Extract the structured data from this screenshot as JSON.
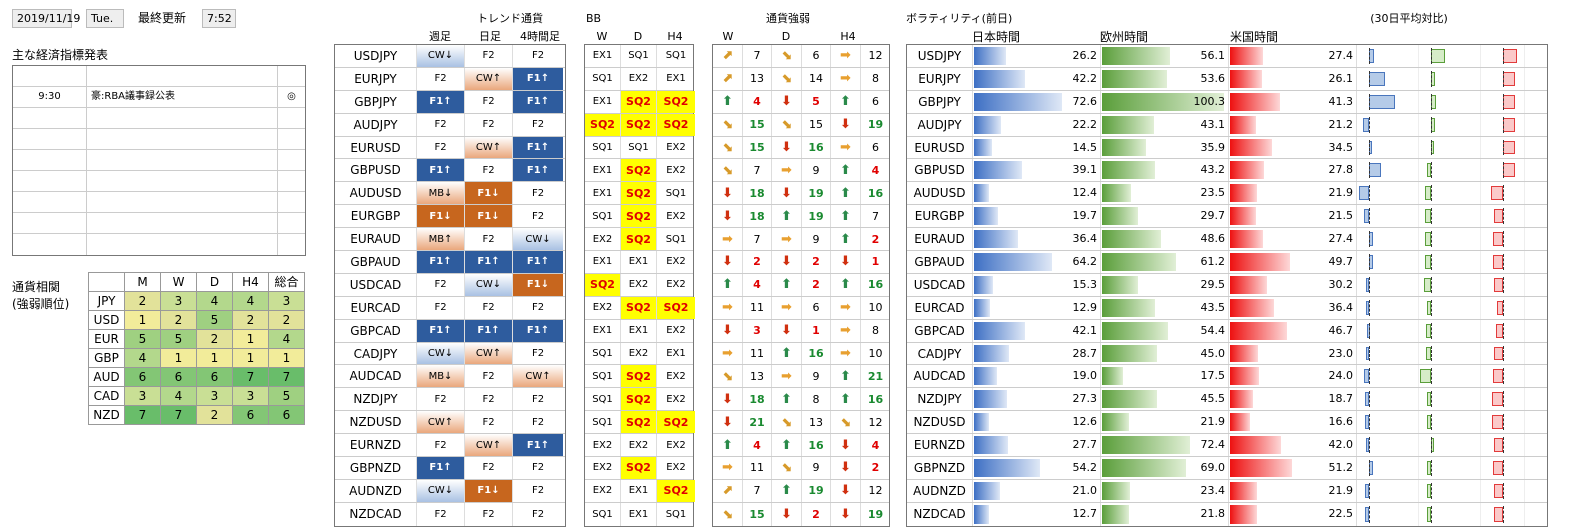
{
  "header": {
    "date": "2019/11/19",
    "dow": "Tue.",
    "updated_label": "最終更新",
    "time": "7:52"
  },
  "econ": {
    "title": "主な経済指標発表",
    "rows": [
      {
        "time": "",
        "event": "",
        "mark": ""
      },
      {
        "time": "9:30",
        "event": "豪:RBA議事録公表",
        "mark": "◎"
      },
      {
        "time": "",
        "event": "",
        "mark": ""
      },
      {
        "time": "",
        "event": "",
        "mark": ""
      },
      {
        "time": "",
        "event": "",
        "mark": ""
      },
      {
        "time": "",
        "event": "",
        "mark": ""
      },
      {
        "time": "",
        "event": "",
        "mark": ""
      },
      {
        "time": "",
        "event": "",
        "mark": ""
      },
      {
        "time": "",
        "event": "",
        "mark": ""
      }
    ]
  },
  "corr": {
    "title1": "通貨相関",
    "title2": "(強弱順位)",
    "headers": [
      "M",
      "W",
      "D",
      "H4",
      "総合"
    ],
    "rows": [
      {
        "name": "JPY",
        "v": [
          "2",
          "3",
          "4",
          "4",
          "3"
        ]
      },
      {
        "name": "USD",
        "v": [
          "1",
          "2",
          "5",
          "2",
          "2"
        ]
      },
      {
        "name": "EUR",
        "v": [
          "5",
          "5",
          "2",
          "1",
          "4"
        ]
      },
      {
        "name": "GBP",
        "v": [
          "4",
          "1",
          "1",
          "1",
          "1"
        ]
      },
      {
        "name": "AUD",
        "v": [
          "6",
          "6",
          "6",
          "7",
          "7"
        ]
      },
      {
        "name": "CAD",
        "v": [
          "3",
          "4",
          "3",
          "3",
          "5"
        ]
      },
      {
        "name": "NZD",
        "v": [
          "7",
          "7",
          "2",
          "6",
          "6"
        ]
      }
    ]
  },
  "trend": {
    "title": "トレンド通貨",
    "headers": [
      "週足",
      "日足",
      "4時間足"
    ],
    "rows": [
      {
        "pair": "USDJPY",
        "c": [
          [
            "CW↓",
            "lb"
          ],
          [
            "F2",
            ""
          ],
          [
            "F2",
            ""
          ]
        ]
      },
      {
        "pair": "EURJPY",
        "c": [
          [
            "F2",
            ""
          ],
          [
            "CW↑",
            "lo"
          ],
          [
            "F1↑",
            "bl"
          ]
        ]
      },
      {
        "pair": "GBPJPY",
        "c": [
          [
            "F1↑",
            "bl"
          ],
          [
            "F2",
            ""
          ],
          [
            "F1↑",
            "bl"
          ]
        ]
      },
      {
        "pair": "AUDJPY",
        "c": [
          [
            "F2",
            ""
          ],
          [
            "F2",
            ""
          ],
          [
            "F2",
            ""
          ]
        ]
      },
      {
        "pair": "EURUSD",
        "c": [
          [
            "F2",
            ""
          ],
          [
            "CW↑",
            "lo"
          ],
          [
            "F1↑",
            "bl"
          ]
        ]
      },
      {
        "pair": "GBPUSD",
        "c": [
          [
            "F1↑",
            "bl"
          ],
          [
            "F2",
            ""
          ],
          [
            "F1↑",
            "bl"
          ]
        ]
      },
      {
        "pair": "AUDUSD",
        "c": [
          [
            "MB↓",
            "lo"
          ],
          [
            "F1↓",
            "or"
          ],
          [
            "F2",
            ""
          ]
        ]
      },
      {
        "pair": "EURGBP",
        "c": [
          [
            "F1↓",
            "or"
          ],
          [
            "F1↓",
            "or"
          ],
          [
            "F2",
            ""
          ]
        ]
      },
      {
        "pair": "EURAUD",
        "c": [
          [
            "MB↑",
            "lo"
          ],
          [
            "F2",
            ""
          ],
          [
            "CW↓",
            "lb"
          ]
        ]
      },
      {
        "pair": "GBPAUD",
        "c": [
          [
            "F1↑",
            "bl"
          ],
          [
            "F1↑",
            "bl"
          ],
          [
            "F1↑",
            "bl"
          ]
        ]
      },
      {
        "pair": "USDCAD",
        "c": [
          [
            "F2",
            ""
          ],
          [
            "CW↓",
            "lb"
          ],
          [
            "F1↓",
            "or"
          ]
        ]
      },
      {
        "pair": "EURCAD",
        "c": [
          [
            "F2",
            ""
          ],
          [
            "F2",
            ""
          ],
          [
            "F2",
            ""
          ]
        ]
      },
      {
        "pair": "GBPCAD",
        "c": [
          [
            "F1↑",
            "bl"
          ],
          [
            "F1↑",
            "bl"
          ],
          [
            "F1↑",
            "bl"
          ]
        ]
      },
      {
        "pair": "CADJPY",
        "c": [
          [
            "CW↓",
            "lb"
          ],
          [
            "CW↑",
            "lo"
          ],
          [
            "F2",
            ""
          ]
        ]
      },
      {
        "pair": "AUDCAD",
        "c": [
          [
            "MB↓",
            "lo"
          ],
          [
            "F2",
            ""
          ],
          [
            "CW↑",
            "lo"
          ]
        ]
      },
      {
        "pair": "NZDJPY",
        "c": [
          [
            "F2",
            ""
          ],
          [
            "F2",
            ""
          ],
          [
            "F2",
            ""
          ]
        ]
      },
      {
        "pair": "NZDUSD",
        "c": [
          [
            "CW↑",
            "lo"
          ],
          [
            "F2",
            ""
          ],
          [
            "F2",
            ""
          ]
        ]
      },
      {
        "pair": "EURNZD",
        "c": [
          [
            "F2",
            ""
          ],
          [
            "CW↑",
            "lo"
          ],
          [
            "F1↑",
            "bl"
          ]
        ]
      },
      {
        "pair": "GBPNZD",
        "c": [
          [
            "F1↑",
            "bl"
          ],
          [
            "F2",
            ""
          ],
          [
            "F2",
            ""
          ]
        ]
      },
      {
        "pair": "AUDNZD",
        "c": [
          [
            "CW↓",
            "lb"
          ],
          [
            "F1↓",
            "or"
          ],
          [
            "F2",
            ""
          ]
        ]
      },
      {
        "pair": "NZDCAD",
        "c": [
          [
            "F2",
            ""
          ],
          [
            "F2",
            ""
          ],
          [
            "F2",
            ""
          ]
        ]
      }
    ]
  },
  "bb": {
    "title": "BB",
    "headers": [
      "W",
      "D",
      "H4"
    ],
    "rows": [
      [
        "EX1",
        "SQ1",
        "SQ1"
      ],
      [
        "SQ1",
        "EX2",
        "EX1"
      ],
      [
        "EX1",
        "SQ2",
        "SQ2"
      ],
      [
        "SQ2",
        "SQ2",
        "SQ2"
      ],
      [
        "SQ1",
        "SQ1",
        "EX2"
      ],
      [
        "EX1",
        "SQ2",
        "EX2"
      ],
      [
        "EX1",
        "SQ2",
        "SQ1"
      ],
      [
        "SQ1",
        "SQ2",
        "EX2"
      ],
      [
        "EX2",
        "SQ2",
        "SQ1"
      ],
      [
        "EX1",
        "EX1",
        "EX2"
      ],
      [
        "SQ2",
        "EX2",
        "EX2"
      ],
      [
        "EX2",
        "SQ2",
        "SQ2"
      ],
      [
        "EX1",
        "EX1",
        "EX2"
      ],
      [
        "SQ1",
        "EX2",
        "EX1"
      ],
      [
        "SQ1",
        "SQ2",
        "EX2"
      ],
      [
        "SQ1",
        "SQ2",
        "EX2"
      ],
      [
        "SQ1",
        "SQ2",
        "SQ2"
      ],
      [
        "EX2",
        "EX2",
        "EX2"
      ],
      [
        "EX2",
        "SQ2",
        "EX2"
      ],
      [
        "EX2",
        "EX1",
        "SQ2"
      ],
      [
        "SQ1",
        "EX1",
        "SQ1"
      ]
    ]
  },
  "strength": {
    "title": "通貨強弱",
    "headers": [
      "W",
      "D",
      "H4"
    ],
    "rows": [
      [
        [
          "ur",
          "7",
          ""
        ],
        [
          "dr",
          "6",
          ""
        ],
        [
          "r",
          "12",
          ""
        ]
      ],
      [
        [
          "ur",
          "13",
          ""
        ],
        [
          "dr",
          "14",
          ""
        ],
        [
          "r",
          "8",
          ""
        ]
      ],
      [
        [
          "up",
          "4",
          "red"
        ],
        [
          "dn",
          "5",
          "red"
        ],
        [
          "up",
          "6",
          ""
        ]
      ],
      [
        [
          "dr",
          "15",
          "grn"
        ],
        [
          "dr",
          "15",
          ""
        ],
        [
          "dn",
          "19",
          "grn"
        ]
      ],
      [
        [
          "dr",
          "15",
          "grn"
        ],
        [
          "dn",
          "16",
          "grn"
        ],
        [
          "r",
          "6",
          ""
        ]
      ],
      [
        [
          "dr",
          "7",
          ""
        ],
        [
          "r",
          "9",
          ""
        ],
        [
          "up",
          "4",
          "red"
        ]
      ],
      [
        [
          "dn",
          "18",
          "grn"
        ],
        [
          "dn",
          "19",
          "grn"
        ],
        [
          "up",
          "16",
          "grn"
        ]
      ],
      [
        [
          "dn",
          "18",
          "grn"
        ],
        [
          "up",
          "19",
          "grn"
        ],
        [
          "up",
          "7",
          ""
        ]
      ],
      [
        [
          "r",
          "7",
          ""
        ],
        [
          "r",
          "9",
          ""
        ],
        [
          "up",
          "2",
          "red"
        ]
      ],
      [
        [
          "dn",
          "2",
          "red"
        ],
        [
          "dn",
          "2",
          "red"
        ],
        [
          "dn",
          "1",
          "red"
        ]
      ],
      [
        [
          "up",
          "4",
          "red"
        ],
        [
          "up",
          "2",
          "red"
        ],
        [
          "up",
          "16",
          "grn"
        ]
      ],
      [
        [
          "r",
          "11",
          ""
        ],
        [
          "r",
          "6",
          ""
        ],
        [
          "r",
          "10",
          ""
        ]
      ],
      [
        [
          "dn",
          "3",
          "red"
        ],
        [
          "dn",
          "1",
          "red"
        ],
        [
          "r",
          "8",
          ""
        ]
      ],
      [
        [
          "r",
          "11",
          ""
        ],
        [
          "up",
          "16",
          "grn"
        ],
        [
          "r",
          "10",
          ""
        ]
      ],
      [
        [
          "dr",
          "13",
          ""
        ],
        [
          "r",
          "9",
          ""
        ],
        [
          "up",
          "21",
          "grn"
        ]
      ],
      [
        [
          "dn",
          "18",
          "grn"
        ],
        [
          "up",
          "8",
          ""
        ],
        [
          "up",
          "16",
          "grn"
        ]
      ],
      [
        [
          "dn",
          "21",
          "grn"
        ],
        [
          "dr",
          "13",
          ""
        ],
        [
          "dr",
          "12",
          ""
        ]
      ],
      [
        [
          "up",
          "4",
          "red"
        ],
        [
          "up",
          "16",
          "grn"
        ],
        [
          "dn",
          "4",
          "red"
        ]
      ],
      [
        [
          "r",
          "11",
          ""
        ],
        [
          "dr",
          "9",
          ""
        ],
        [
          "dn",
          "2",
          "red"
        ]
      ],
      [
        [
          "ur",
          "7",
          ""
        ],
        [
          "up",
          "19",
          "grn"
        ],
        [
          "dn",
          "12",
          ""
        ]
      ],
      [
        [
          "dr",
          "15",
          "grn"
        ],
        [
          "dn",
          "2",
          "red"
        ],
        [
          "dn",
          "19",
          "grn"
        ]
      ]
    ]
  },
  "vol": {
    "title": "ボラティリティ(前日)",
    "subtitle": "(30日平均対比)",
    "headers": [
      "日本時間",
      "欧州時間",
      "米国時間"
    ],
    "rows": [
      {
        "pair": "USDJPY",
        "jp": "26.2",
        "eu": "56.1",
        "us": "27.4",
        "r": [
          0.5,
          1.4,
          1.4
        ]
      },
      {
        "pair": "EURJPY",
        "jp": "42.2",
        "eu": "53.6",
        "us": "26.1",
        "r": [
          1.6,
          0.4,
          1.2
        ]
      },
      {
        "pair": "GBPJPY",
        "jp": "72.6",
        "eu": "100.3",
        "us": "41.3",
        "r": [
          2.6,
          0.5,
          1.2
        ]
      },
      {
        "pair": "AUDJPY",
        "jp": "22.2",
        "eu": "43.1",
        "us": "21.2",
        "r": [
          -0.6,
          0.4,
          1.2
        ]
      },
      {
        "pair": "EURUSD",
        "jp": "14.5",
        "eu": "35.9",
        "us": "34.5",
        "r": [
          0.1,
          0.1,
          1.2
        ]
      },
      {
        "pair": "GBPUSD",
        "jp": "39.1",
        "eu": "43.2",
        "us": "27.8",
        "r": [
          1.2,
          -0.4,
          1.2
        ]
      },
      {
        "pair": "AUDUSD",
        "jp": "12.4",
        "eu": "23.5",
        "us": "21.9",
        "r": [
          -1.0,
          -0.6,
          -1.2
        ]
      },
      {
        "pair": "EURGBP",
        "jp": "19.7",
        "eu": "29.7",
        "us": "21.5",
        "r": [
          -0.5,
          -0.6,
          -0.9
        ]
      },
      {
        "pair": "EURAUD",
        "jp": "36.4",
        "eu": "48.6",
        "us": "27.4",
        "r": [
          0.4,
          -0.6,
          -1.0
        ]
      },
      {
        "pair": "GBPAUD",
        "jp": "64.2",
        "eu": "61.2",
        "us": "49.7",
        "r": [
          0.4,
          -0.6,
          -1.0
        ]
      },
      {
        "pair": "USDCAD",
        "jp": "15.3",
        "eu": "29.5",
        "us": "30.2",
        "r": [
          -0.3,
          -0.7,
          -0.9
        ]
      },
      {
        "pair": "EURCAD",
        "jp": "12.9",
        "eu": "43.5",
        "us": "36.4",
        "r": [
          -0.3,
          -0.4,
          -0.6
        ]
      },
      {
        "pair": "GBPCAD",
        "jp": "42.1",
        "eu": "54.4",
        "us": "46.7",
        "r": [
          -0.2,
          -0.5,
          -0.7
        ]
      },
      {
        "pair": "CADJPY",
        "jp": "28.7",
        "eu": "45.0",
        "us": "23.0",
        "r": [
          -0.3,
          -0.5,
          -0.9
        ]
      },
      {
        "pair": "AUDCAD",
        "jp": "19.0",
        "eu": "17.5",
        "us": "24.0",
        "r": [
          -0.5,
          -1.1,
          -1.0
        ]
      },
      {
        "pair": "NZDJPY",
        "jp": "27.3",
        "eu": "45.5",
        "us": "18.7",
        "r": [
          -0.4,
          -0.4,
          -1.1
        ]
      },
      {
        "pair": "NZDUSD",
        "jp": "12.6",
        "eu": "21.9",
        "us": "16.6",
        "r": [
          -0.4,
          -0.4,
          -1.1
        ]
      },
      {
        "pair": "EURNZD",
        "jp": "27.7",
        "eu": "72.4",
        "us": "42.0",
        "r": [
          -0.3,
          0.3,
          -0.9
        ]
      },
      {
        "pair": "GBPNZD",
        "jp": "54.2",
        "eu": "69.0",
        "us": "51.2",
        "r": [
          0.4,
          -0.4,
          -1.0
        ]
      },
      {
        "pair": "AUDNZD",
        "jp": "21.0",
        "eu": "23.4",
        "us": "21.9",
        "r": [
          -0.4,
          -0.4,
          -0.9
        ]
      },
      {
        "pair": "NZDCAD",
        "jp": "12.7",
        "eu": "21.8",
        "us": "22.5",
        "r": [
          -0.4,
          -0.4,
          -0.9
        ]
      }
    ]
  },
  "colors": {
    "trend_blue": "#2e5c9e",
    "trend_orange": "#c7661e",
    "sq_yellow": "#ffff00",
    "jp_bar": "#3d6fc4",
    "eu_bar": "#5a9e3a",
    "us_bar": "#ee1010"
  }
}
